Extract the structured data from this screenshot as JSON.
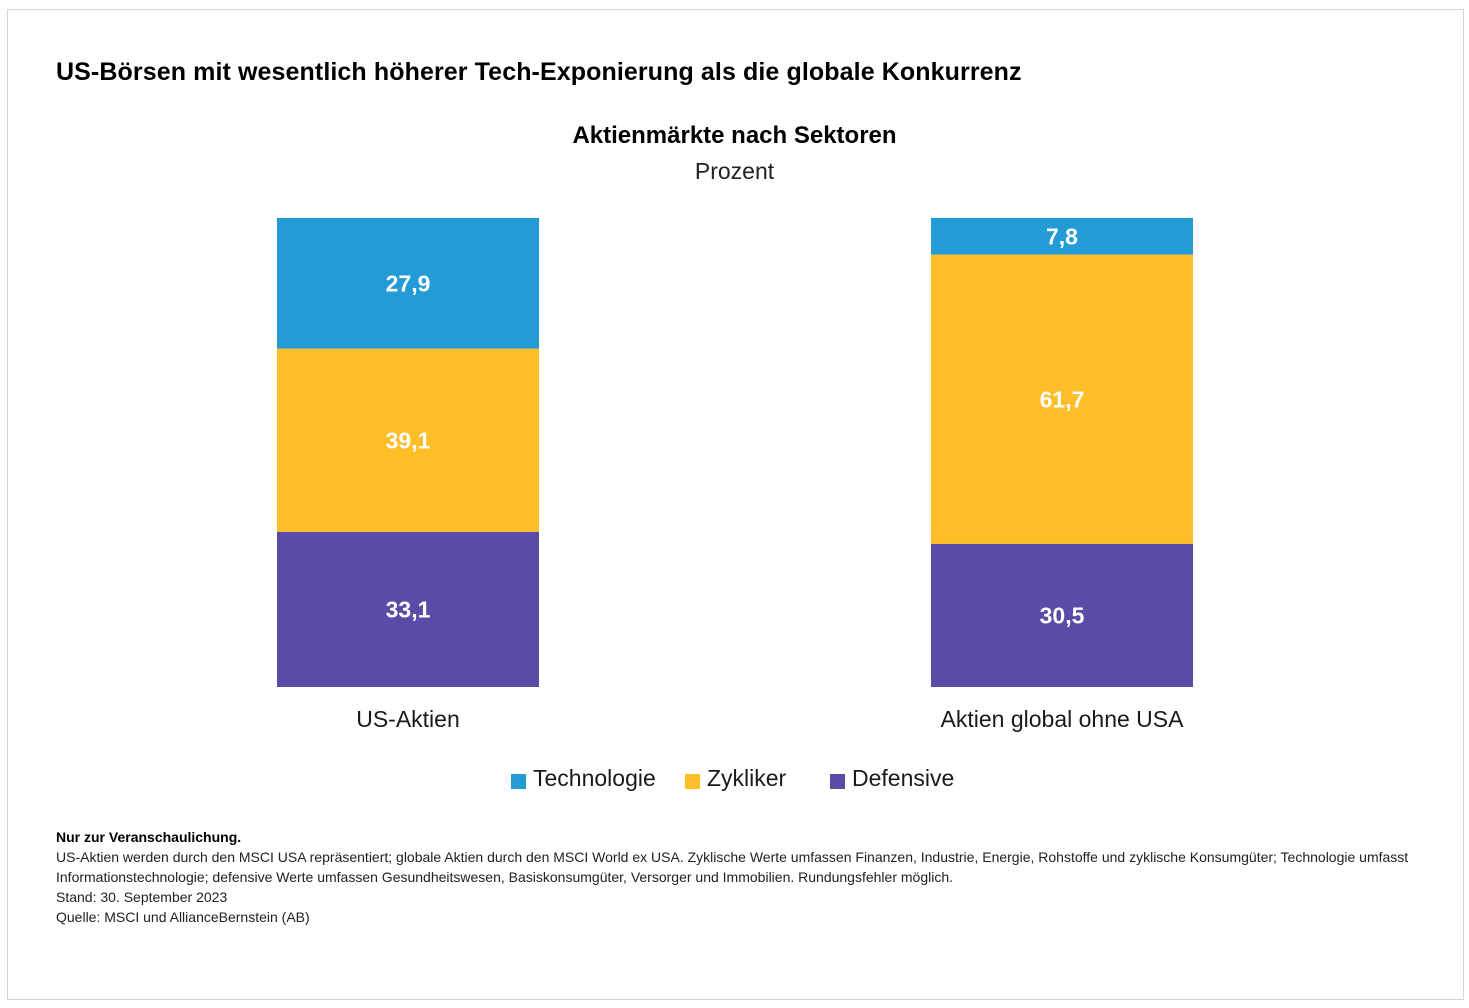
{
  "headline": "US-Börsen mit wesentlich höherer Tech-Exponierung als die globale Konkurrenz",
  "chart_data": {
    "type": "bar",
    "stacked": true,
    "title": "Aktienmärkte nach Sektoren",
    "subtitle": "Prozent",
    "categories": [
      "US-Aktien",
      "Aktien global ohne USA"
    ],
    "series": [
      {
        "name": "Technologie",
        "color": "#229bd7",
        "values": [
          27.9,
          7.8
        ],
        "labels": [
          "27,9",
          "7,8"
        ]
      },
      {
        "name": "Zykliker",
        "color": "#fdbe27",
        "values": [
          39.1,
          61.7
        ],
        "labels": [
          "39,1",
          "61,7"
        ]
      },
      {
        "name": "Defensive",
        "color": "#5b4aa6",
        "values": [
          33.1,
          30.5
        ],
        "labels": [
          "33,1",
          "30,5"
        ]
      }
    ],
    "stack_order_top_to_bottom": [
      "Technologie",
      "Zykliker",
      "Defensive"
    ],
    "ylim": [
      0,
      100
    ],
    "grid": false,
    "legend_position": "bottom-center"
  },
  "footnotes": {
    "lead": "Nur zur Veranschaulichung.",
    "line1": "US-Aktien werden durch den MSCI USA repräsentiert; globale Aktien durch den MSCI World ex USA. Zyklische Werte umfassen Finanzen, Industrie, Energie, Rohstoffe und zyklische Konsumgüter; Technologie umfasst",
    "line2": "Informationstechnologie; defensive Werte umfassen Gesundheitswesen, Basiskonsumgüter, Versorger und Immobilien. Rundungsfehler möglich.",
    "stand": "Stand: 30. September 2023",
    "source": "Quelle: MSCI und AllianceBernstein (AB)"
  }
}
